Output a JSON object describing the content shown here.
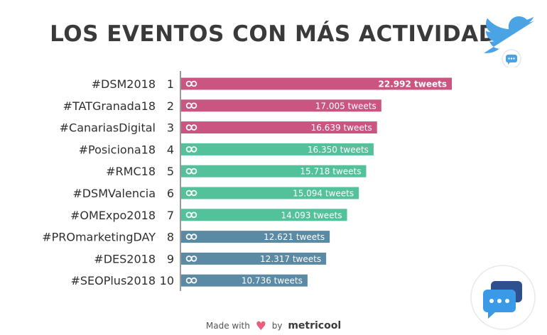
{
  "title": "LOS EVENTOS CON MÁS ACTIVIDAD",
  "footer": {
    "made_with": "Made with",
    "by": "by",
    "brand": "metricool"
  },
  "colors": {
    "title": "#3a3a3a",
    "pink": "#c95580",
    "green": "#53c29a",
    "blue": "#5b8aa5",
    "axis": "#333333",
    "heart": "#e95e7c",
    "twitter": "#4aa3e4"
  },
  "icons": [
    "twitter-bird-icon",
    "link-icon",
    "heart-icon",
    "chat-bubbles-icon"
  ],
  "chart_data": {
    "type": "bar",
    "orientation": "horizontal",
    "categories": [
      "#DSM2018",
      "#TATGranada18",
      "#CanariasDigital",
      "#Posiciona18",
      "#RMC18",
      "#DSMValencia",
      "#OMExpo2018",
      "#PROmarketingDAY",
      "#DES2018",
      "#SEOPlus2018"
    ],
    "ranks": [
      "1",
      "2",
      "3",
      "4",
      "5",
      "6",
      "7",
      "8",
      "9",
      "10"
    ],
    "values": [
      22992,
      17005,
      16639,
      16350,
      15718,
      15094,
      14093,
      12621,
      12317,
      10736
    ],
    "labels": [
      "22.992 tweets",
      "17.005 tweets",
      "16.639 tweets",
      "16.350 tweets",
      "15.718 tweets",
      "15.094 tweets",
      "14.093 tweets",
      "12.621 tweets",
      "12.317 tweets",
      "10.736 tweets"
    ],
    "bar_colors": [
      "#c95580",
      "#c95580",
      "#c95580",
      "#53c29a",
      "#53c29a",
      "#53c29a",
      "#53c29a",
      "#5b8aa5",
      "#5b8aa5",
      "#5b8aa5"
    ],
    "xlim": [
      0,
      24000
    ],
    "grid": false
  }
}
